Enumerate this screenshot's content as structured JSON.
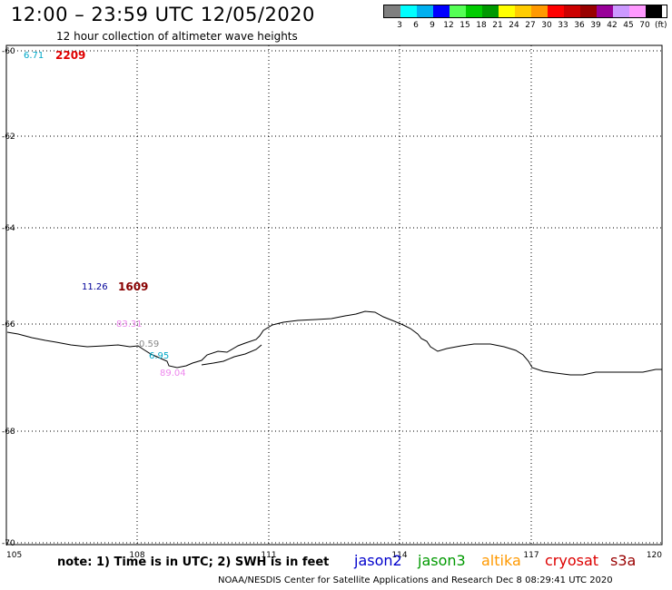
{
  "header": {
    "title": "12:00 – 23:59 UTC 12/05/2020",
    "subtitle": "12 hour collection of altimeter wave heights"
  },
  "color_scale": {
    "colors": [
      "#7f7f7f",
      "#00ffff",
      "#00b0f0",
      "#0000ff",
      "#55ff55",
      "#00cc00",
      "#009900",
      "#ffff00",
      "#ffcc00",
      "#ff9900",
      "#ff0000",
      "#cc0000",
      "#990000",
      "#990099",
      "#cc99ff",
      "#ff99ff",
      "#000000"
    ],
    "labels": [
      "3",
      "6",
      "9",
      "12",
      "15",
      "18",
      "21",
      "24",
      "27",
      "30",
      "33",
      "36",
      "39",
      "42",
      "45",
      "70"
    ],
    "unit": "(ft)"
  },
  "axes": {
    "lon_labels": [
      "105",
      "108",
      "111",
      "114",
      "117",
      "120"
    ],
    "lat_labels": [
      "-60",
      "-62",
      "-64",
      "-66",
      "-68",
      "-70"
    ]
  },
  "annotations": [
    {
      "text": "6.71",
      "color": "#00a8c8"
    },
    {
      "text": "2209",
      "color": "#e00000"
    },
    {
      "text": "11.26",
      "color": "#000099"
    },
    {
      "text": "1609",
      "color": "#880000"
    },
    {
      "text": "83.31",
      "color": "#ee88ee"
    },
    {
      "text": "0.59",
      "color": "#888888"
    },
    {
      "text": "6.95",
      "color": "#00a8c8"
    },
    {
      "text": "89.04",
      "color": "#ee88ee"
    }
  ],
  "footer": {
    "note": "note:  1) Time is in UTC;  2) SWH is in feet",
    "satellites": [
      {
        "name": "jason2",
        "color": "#0000cc"
      },
      {
        "name": "jason3",
        "color": "#009900"
      },
      {
        "name": "altika",
        "color": "#ff9900"
      },
      {
        "name": "cryosat",
        "color": "#dd0000"
      },
      {
        "name": "s3a",
        "color": "#990000"
      }
    ],
    "credit": "NOAA/NESDIS Center for Satellite Applications and Research    Dec  8 08:29:41 UTC 2020"
  }
}
